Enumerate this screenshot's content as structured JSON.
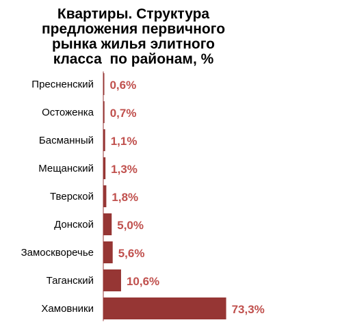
{
  "colors": {
    "bar": "#963634",
    "value_label": "#C0504D",
    "category_label": "#000000",
    "axis": "#963634"
  },
  "chart_data": {
    "type": "bar",
    "orientation": "horizontal",
    "title_lines": [
      "Квартиры. Структура",
      "предложения первичного",
      "рынка жилья элитного",
      "класса  по районам, %"
    ],
    "categories": [
      "Пресненский",
      "Остоженка",
      "Басманный",
      "Мещанский",
      "Тверской",
      "Донской",
      "Замоскворечье",
      "Таганский",
      "Хамовники"
    ],
    "values": [
      0.6,
      0.7,
      1.1,
      1.3,
      1.8,
      5.0,
      5.6,
      10.6,
      73.3
    ],
    "value_labels": [
      "0,6%",
      "0,7%",
      "1,1%",
      "1,3%",
      "1,8%",
      "5,0%",
      "5,6%",
      "10,6%",
      "73,3%"
    ],
    "xlim": [
      0,
      100
    ],
    "grid": false,
    "legend": "none"
  }
}
